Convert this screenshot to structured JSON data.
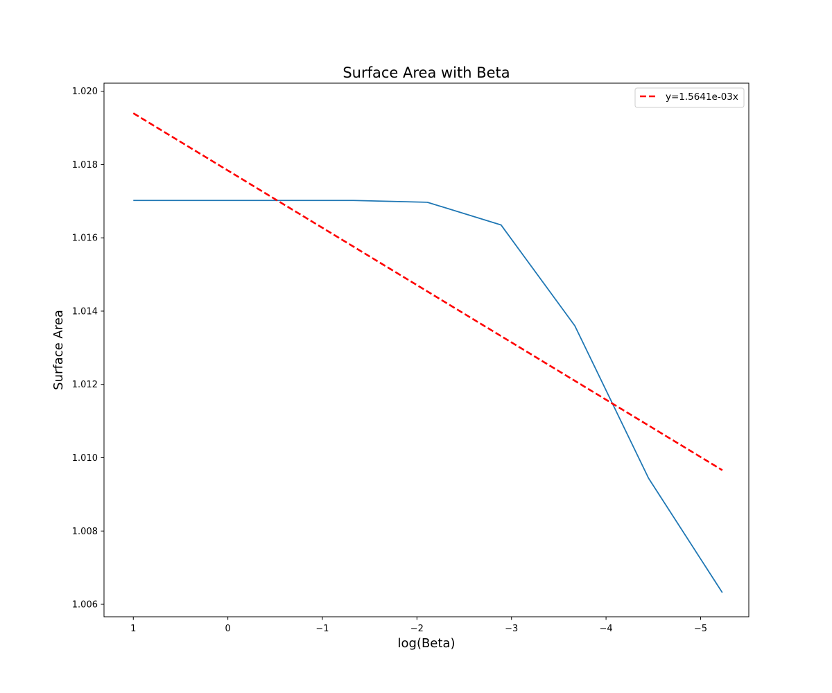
{
  "chart_data": {
    "type": "line",
    "title": "Surface Area with Beta",
    "xlabel": "log(Beta)",
    "ylabel": "Surface Area",
    "x_inverted": true,
    "xlim": [
      1.31,
      -5.51
    ],
    "ylim": [
      1.00566,
      1.02022
    ],
    "x_ticks": [
      1,
      0,
      -1,
      -2,
      -3,
      -4,
      -5
    ],
    "x_tick_labels": [
      "1",
      "0",
      "−1",
      "−2",
      "−3",
      "−4",
      "−5"
    ],
    "y_ticks": [
      1.006,
      1.008,
      1.01,
      1.012,
      1.014,
      1.016,
      1.018,
      1.02
    ],
    "y_tick_labels": [
      "1.006",
      "1.008",
      "1.010",
      "1.012",
      "1.014",
      "1.016",
      "1.018",
      "1.020"
    ],
    "grid": false,
    "legend_position": "upper right",
    "series": [
      {
        "name": "",
        "color": "#1f77b4",
        "style": "solid",
        "x": [
          1.0,
          -1.33,
          -2.11,
          -2.89,
          -3.67,
          -4.45,
          -5.23
        ],
        "y": [
          1.01702,
          1.01702,
          1.01697,
          1.01635,
          1.0136,
          1.00944,
          1.00632
        ]
      },
      {
        "name": "y=1.5641e-03x",
        "color": "#ff0000",
        "style": "dashed",
        "x": [
          1.0,
          -5.23
        ],
        "y": [
          1.0194,
          1.00966
        ]
      }
    ]
  }
}
